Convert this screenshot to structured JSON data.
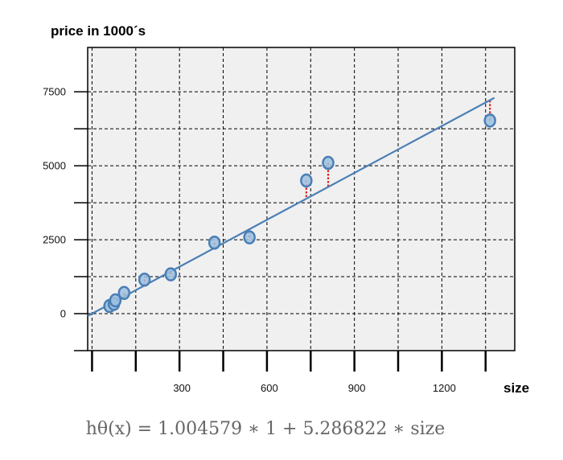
{
  "chart_data": {
    "type": "scatter",
    "title": "",
    "xlabel": "size",
    "ylabel": "price in 1000´s",
    "xlim": [
      -15,
      1450
    ],
    "ylim": [
      -1250,
      9000
    ],
    "x_ticks": [
      300,
      600,
      900,
      1200
    ],
    "x_tick_labels": [
      "300",
      "600",
      "900",
      "1200"
    ],
    "y_ticks": [
      0,
      2500,
      5000,
      7500
    ],
    "y_tick_labels": [
      "0",
      "2500",
      "5000",
      "7500"
    ],
    "x_gridlines": [
      0,
      150,
      300,
      450,
      600,
      750,
      900,
      1050,
      1200,
      1350
    ],
    "y_gridlines": [
      -1250,
      0,
      1250,
      2500,
      3750,
      5000,
      6250,
      7500
    ],
    "grid": true,
    "regression": {
      "intercept": 1.004579,
      "slope": 5.286822,
      "x_range": [
        -15,
        1380
      ]
    },
    "points": [
      {
        "x": 60,
        "y": 260
      },
      {
        "x": 75,
        "y": 330
      },
      {
        "x": 80,
        "y": 450
      },
      {
        "x": 110,
        "y": 700
      },
      {
        "x": 180,
        "y": 1150
      },
      {
        "x": 270,
        "y": 1330
      },
      {
        "x": 420,
        "y": 2400
      },
      {
        "x": 540,
        "y": 2580
      },
      {
        "x": 735,
        "y": 4500
      },
      {
        "x": 810,
        "y": 5100
      },
      {
        "x": 1365,
        "y": 6530
      }
    ],
    "formula": "hθ(x) = 1.004579 ∗ 1 + 5.286822 ∗ size",
    "colors": {
      "plot_bg": "#f0f0f0",
      "line": "#4a7fb5",
      "point_fill": "#9cc0e0",
      "point_stroke": "#4a7fb5",
      "residual": "#e02020",
      "formula_text": "#666666"
    }
  }
}
